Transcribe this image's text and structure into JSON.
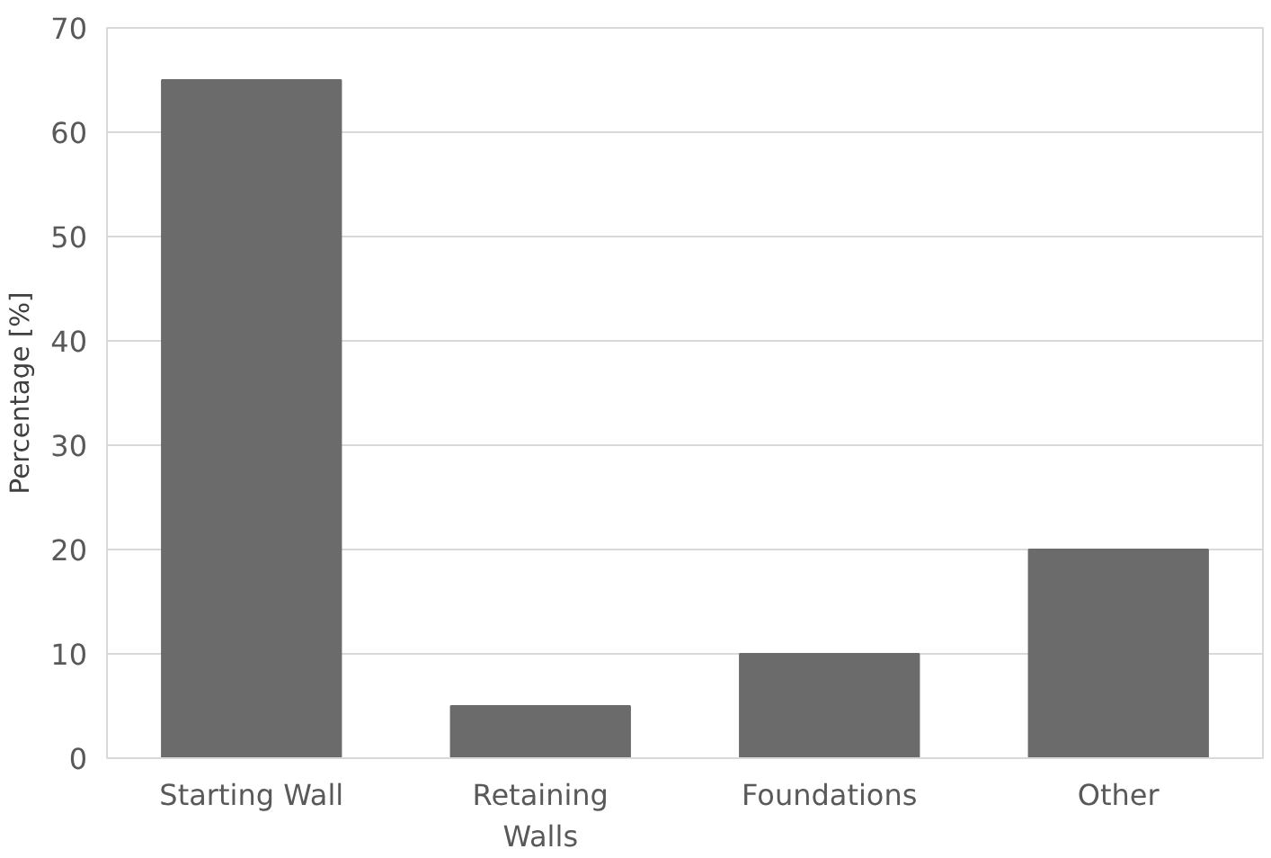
{
  "chart_data": {
    "type": "bar",
    "ylabel": "Percentage [%]",
    "categories": [
      "Starting Wall",
      "Retaining Walls",
      "Foundations",
      "Other"
    ],
    "values": [
      65,
      5,
      10,
      20
    ],
    "color": "#6b6b6b",
    "ylim": [
      0,
      70
    ],
    "yticks": [
      0,
      10,
      20,
      30,
      40,
      50,
      60,
      70
    ],
    "grid": "y"
  }
}
